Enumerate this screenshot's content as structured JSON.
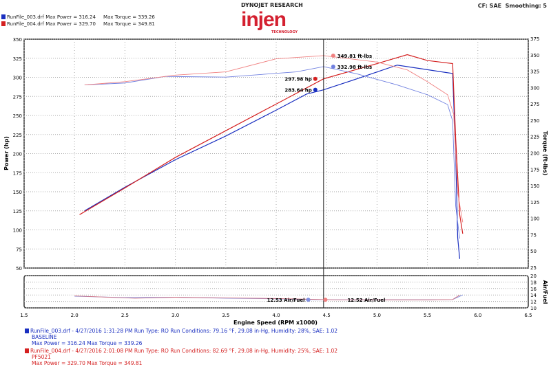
{
  "header": {
    "brand": "DYNOJET RESEARCH",
    "logo_text": "injen",
    "logo_sub": "TECHNOLOGY",
    "settings": "CF: SAE  Smoothing: 5",
    "runs": [
      {
        "label": "RunFile_003.drf Max Power = 316.24",
        "torque": "Max Torque = 339.26",
        "color": "#1a2fc0"
      },
      {
        "label": "RunFile_004.drf Max Power = 329.70",
        "torque": "Max Torque = 349.81",
        "color": "#d42020"
      }
    ]
  },
  "chart_data": {
    "type": "line",
    "xlabel": "Engine Speed (RPM x1000)",
    "ylabel_left": "Power (hp)",
    "ylabel_right": "Torque (ft-lbs)",
    "ylabel_afr": "Air/Fuel",
    "xlim": [
      1.5,
      6.5
    ],
    "xticks": [
      1.5,
      2.0,
      2.5,
      3.0,
      3.5,
      4.0,
      4.5,
      5.0,
      5.5,
      6.0,
      6.5
    ],
    "ylim_power": [
      50,
      350
    ],
    "ylim_torque": [
      25,
      375
    ],
    "ylim_afr": [
      10,
      20
    ],
    "grid": true,
    "cursor_x": 4.47,
    "series": [
      {
        "name": "RunFile_003.drf",
        "kind": "power",
        "color": "#1a2fc0",
        "x": [
          2.1,
          2.5,
          3.0,
          3.5,
          4.0,
          4.3,
          4.47,
          4.8,
          5.0,
          5.2,
          5.5,
          5.75,
          5.78,
          5.8,
          5.82
        ],
        "y": [
          125,
          156,
          192,
          223,
          257,
          278,
          283.64,
          298,
          307,
          316,
          310,
          305,
          200,
          90,
          62
        ]
      },
      {
        "name": "RunFile_004.drf",
        "kind": "power",
        "color": "#d42020",
        "x": [
          2.05,
          2.5,
          3.0,
          3.5,
          4.0,
          4.47,
          5.0,
          5.3,
          5.5,
          5.75,
          5.78,
          5.82,
          5.85
        ],
        "y": [
          120,
          155,
          195,
          230,
          265,
          297.98,
          318,
          329.7,
          322,
          318,
          220,
          120,
          95
        ]
      },
      {
        "name": "RunFile_003.drf",
        "kind": "torque",
        "color": "#7080e0",
        "x": [
          2.1,
          2.5,
          2.9,
          3.5,
          4.2,
          4.47,
          4.8,
          5.2,
          5.5,
          5.7,
          5.75,
          5.78,
          5.82
        ],
        "y": [
          305,
          308,
          318,
          317,
          325,
          332.98,
          322,
          305,
          290,
          275,
          250,
          120,
          70
        ]
      },
      {
        "name": "RunFile_004.drf",
        "kind": "torque",
        "color": "#f08080",
        "x": [
          2.1,
          2.5,
          3.0,
          3.5,
          4.0,
          4.47,
          5.0,
          5.3,
          5.5,
          5.7,
          5.76,
          5.8,
          5.85
        ],
        "y": [
          305,
          310,
          320,
          325,
          345,
          349.81,
          340,
          328,
          310,
          290,
          260,
          140,
          95
        ]
      },
      {
        "name": "RunFile_003.drf",
        "kind": "afr",
        "color": "#8090e0",
        "x": [
          2.0,
          2.5,
          3.0,
          3.5,
          4.0,
          4.4,
          5.0,
          5.5,
          5.75,
          5.85
        ],
        "y": [
          13.6,
          13.2,
          13.3,
          13.0,
          12.8,
          12.53,
          12.5,
          12.5,
          12.6,
          14.0
        ]
      },
      {
        "name": "RunFile_004.drf",
        "kind": "afr",
        "color": "#d07080",
        "x": [
          2.0,
          2.6,
          3.0,
          3.5,
          4.0,
          4.57,
          5.0,
          5.5,
          5.75,
          5.82
        ],
        "y": [
          13.7,
          13.0,
          13.3,
          13.1,
          12.9,
          12.52,
          12.5,
          12.5,
          12.6,
          14.0
        ]
      }
    ],
    "annotations": [
      {
        "text": "349.81 ft-lbs",
        "x": 4.47,
        "y": 349.81,
        "axis": "torque",
        "color": "#f08080"
      },
      {
        "text": "332.98 ft-lbs",
        "x": 4.47,
        "y": 332.98,
        "axis": "torque",
        "color": "#7080e0"
      },
      {
        "text": "297.98 hp",
        "x": 4.47,
        "y": 297.98,
        "axis": "power",
        "color": "#d42020"
      },
      {
        "text": "283.64 hp",
        "x": 4.47,
        "y": 283.64,
        "axis": "power",
        "color": "#1a2fc0"
      },
      {
        "text": "12.53 Air/Fuel",
        "x": 4.4,
        "y": 12.53,
        "axis": "afr",
        "color": "#8090e0"
      },
      {
        "text": "12.52 Air/Fuel",
        "x": 4.57,
        "y": 12.52,
        "axis": "afr",
        "color": "#f08080"
      }
    ]
  },
  "legend": [
    {
      "line1": "RunFile_003.drf - 4/27/2016 1:31:28 PM  Run Type: RO  Run Conditions: 79.16 °F, 29.08 in-Hg,  Humidity:  28%,  SAE: 1.02",
      "line2": "BASELINE",
      "line3": "Max Power = 316.24  Max Torque = 339.26",
      "color": "#1a2fc0"
    },
    {
      "line1": "RunFile_004.drf - 4/27/2016 2:01:08 PM  Run Type: RO  Run Conditions: 82.69 °F, 29.08 in-Hg,  Humidity:  25%,  SAE: 1.02",
      "line2": "PF5021",
      "line3": "Max Power = 329.70  Max Torque = 349.81",
      "color": "#d42020"
    }
  ]
}
